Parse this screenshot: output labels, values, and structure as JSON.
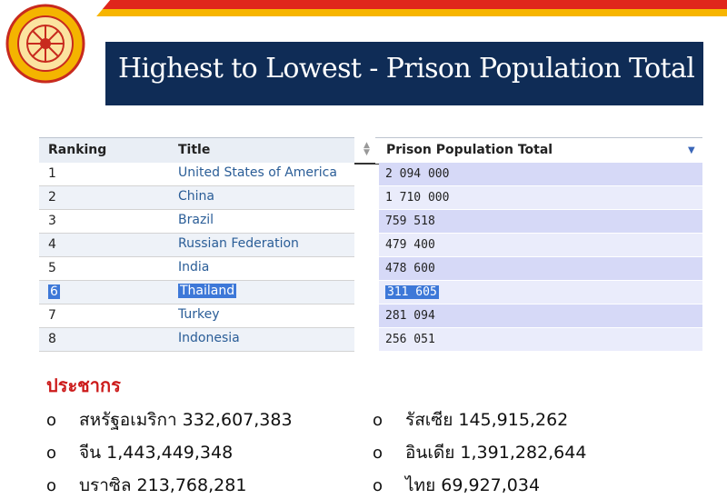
{
  "slide": {
    "title": "Highest to Lowest - Prison Population Total",
    "colors": {
      "title_bg": "#0f2c56",
      "accent_red": "#e0261c",
      "accent_yellow": "#f7b500",
      "link": "#2a5d97"
    }
  },
  "table": {
    "headers": {
      "ranking": "Ranking",
      "title": "Title",
      "prison_population": "Prison Population Total"
    },
    "rows": [
      {
        "rank": "1",
        "country": "United States of America",
        "population": "2 094 000",
        "selected": false
      },
      {
        "rank": "2",
        "country": "China",
        "population": "1 710 000",
        "selected": false
      },
      {
        "rank": "3",
        "country": "Brazil",
        "population": "759 518",
        "selected": false
      },
      {
        "rank": "4",
        "country": "Russian Federation",
        "population": "479 400",
        "selected": false
      },
      {
        "rank": "5",
        "country": "India",
        "population": "478 600",
        "selected": false
      },
      {
        "rank": "6",
        "country": "Thailand",
        "population": "311 605",
        "selected": true
      },
      {
        "rank": "7",
        "country": "Turkey",
        "population": "281 094",
        "selected": false
      },
      {
        "rank": "8",
        "country": "Indonesia",
        "population": "256 051",
        "selected": false
      }
    ]
  },
  "population_section": {
    "title": "ประชากร",
    "bullet": "o",
    "left": [
      {
        "country": "สหรัฐอเมริกา",
        "value": "332,607,383"
      },
      {
        "country": "จีน",
        "value": "1,443,449,348"
      },
      {
        "country": "บราซิล",
        "value": "213,768,281"
      }
    ],
    "right": [
      {
        "country": "รัสเซีย",
        "value": "145,915,262"
      },
      {
        "country": "อินเดีย",
        "value": "1,391,282,644"
      },
      {
        "country": "ไทย",
        "value": "69,927,034"
      }
    ]
  }
}
